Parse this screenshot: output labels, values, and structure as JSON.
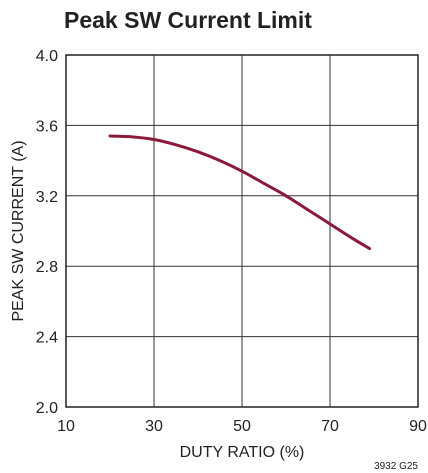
{
  "chart_data": {
    "type": "line",
    "title": "Peak SW Current Limit",
    "xlabel": "DUTY RATIO (%)",
    "ylabel": "PEAK SW CURRENT (A)",
    "xlim": [
      10,
      90
    ],
    "ylim": [
      2.0,
      4.0
    ],
    "xticks": [
      "10",
      "30",
      "50",
      "70",
      "90"
    ],
    "yticks": [
      "2.0",
      "2.4",
      "2.8",
      "3.2",
      "3.6",
      "4.0"
    ],
    "grid": true,
    "series": [
      {
        "color": "#8b1a3a",
        "x": [
          20,
          25,
          30,
          35,
          40,
          45,
          50,
          55,
          60,
          65,
          70,
          75,
          79
        ],
        "y": [
          3.54,
          3.535,
          3.52,
          3.49,
          3.45,
          3.4,
          3.34,
          3.27,
          3.2,
          3.12,
          3.04,
          2.96,
          2.9
        ]
      }
    ],
    "note": "3932 G25"
  }
}
